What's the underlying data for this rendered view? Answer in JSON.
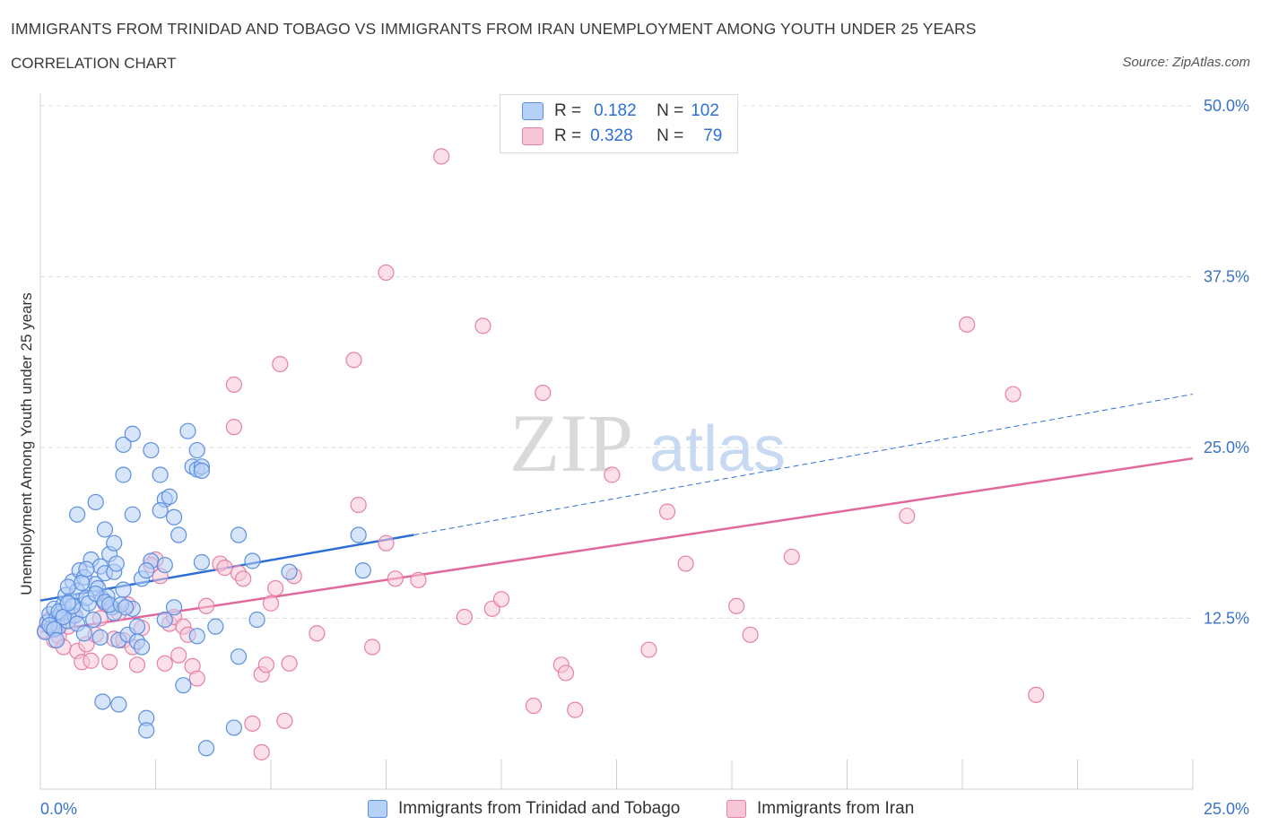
{
  "header": {
    "title": "IMMIGRANTS FROM TRINIDAD AND TOBAGO VS IMMIGRANTS FROM IRAN UNEMPLOYMENT AMONG YOUTH UNDER 25 YEARS",
    "subtitle": "CORRELATION CHART",
    "source": "Source: ZipAtlas.com"
  },
  "legend": {
    "r_label": "R =",
    "n_label": "N =",
    "series1_r": "0.182",
    "series1_n": "102",
    "series2_r": "0.328",
    "series2_n": "79"
  },
  "watermark": {
    "zip": "ZIP",
    "atlas": "atlas"
  },
  "colors": {
    "blue": "#5b8fe0",
    "blue_fill": "#b7d0f5",
    "blue_line": "#2d6fd6",
    "pink": "#e87fa6",
    "pink_fill": "#f7c6d7",
    "pink_line": "#e2679a",
    "axis_text": "#3a72c9"
  },
  "chart_data": {
    "type": "scatter",
    "title": "IMMIGRANTS FROM TRINIDAD AND TOBAGO VS IMMIGRANTS FROM IRAN UNEMPLOYMENT AMONG YOUTH UNDER 25 YEARS",
    "subtitle": "CORRELATION CHART",
    "xlabel": "",
    "ylabel": "Unemployment Among Youth under 25 years",
    "xlim": [
      0,
      25
    ],
    "ylim": [
      0,
      50
    ],
    "x_tick_labels": [
      "0.0%",
      "25.0%"
    ],
    "y_ticks": [
      12.5,
      25,
      37.5,
      50
    ],
    "y_tick_labels": [
      "12.5%",
      "25.0%",
      "37.5%",
      "50.0%"
    ],
    "grid": true,
    "legend_position": "top-center",
    "series": [
      {
        "name": "Immigrants from Trinidad and Tobago",
        "color": "#5b8fe0",
        "R": 0.182,
        "N": 102,
        "trend": {
          "x": [
            0,
            8.1
          ],
          "y": [
            13.8,
            18.6
          ],
          "dashed_to": [
            25,
            28.9
          ]
        },
        "points": [
          [
            0.1,
            11.5
          ],
          [
            0.15,
            12.2
          ],
          [
            0.2,
            12.8
          ],
          [
            0.25,
            11.8
          ],
          [
            0.3,
            13.2
          ],
          [
            0.35,
            12.5
          ],
          [
            0.4,
            11.9
          ],
          [
            0.45,
            12.9
          ],
          [
            0.5,
            13.5
          ],
          [
            0.55,
            14.2
          ],
          [
            0.6,
            12.3
          ],
          [
            0.65,
            13.8
          ],
          [
            0.7,
            15.2
          ],
          [
            0.75,
            12.7
          ],
          [
            0.8,
            14.5
          ],
          [
            0.85,
            16.0
          ],
          [
            0.9,
            13.1
          ],
          [
            0.95,
            15.5
          ],
          [
            1.0,
            14.0
          ],
          [
            1.05,
            13.6
          ],
          [
            1.1,
            16.8
          ],
          [
            1.15,
            12.4
          ],
          [
            1.2,
            15.0
          ],
          [
            1.25,
            14.7
          ],
          [
            1.3,
            16.3
          ],
          [
            1.35,
            13.9
          ],
          [
            1.4,
            15.8
          ],
          [
            1.45,
            14.1
          ],
          [
            1.5,
            17.2
          ],
          [
            1.55,
            13.3
          ],
          [
            1.6,
            15.9
          ],
          [
            1.65,
            16.5
          ],
          [
            0.2,
            12.0
          ],
          [
            0.3,
            11.7
          ],
          [
            0.4,
            13.0
          ],
          [
            0.5,
            12.6
          ],
          [
            0.6,
            14.8
          ],
          [
            0.7,
            13.4
          ],
          [
            0.8,
            12.1
          ],
          [
            0.9,
            15.1
          ],
          [
            1.0,
            16.1
          ],
          [
            1.2,
            14.3
          ],
          [
            1.4,
            13.7
          ],
          [
            1.6,
            12.9
          ],
          [
            1.8,
            14.6
          ],
          [
            2.0,
            13.2
          ],
          [
            2.2,
            15.4
          ],
          [
            2.4,
            16.7
          ],
          [
            0.8,
            20.1
          ],
          [
            1.2,
            21.0
          ],
          [
            1.4,
            19.0
          ],
          [
            1.6,
            18.0
          ],
          [
            1.8,
            25.2
          ],
          [
            1.8,
            23.0
          ],
          [
            2.0,
            26.0
          ],
          [
            2.0,
            20.1
          ],
          [
            2.4,
            24.8
          ],
          [
            2.6,
            23.0
          ],
          [
            2.7,
            21.2
          ],
          [
            2.8,
            21.4
          ],
          [
            2.9,
            19.9
          ],
          [
            3.0,
            18.6
          ],
          [
            3.2,
            26.2
          ],
          [
            3.3,
            23.6
          ],
          [
            3.4,
            24.8
          ],
          [
            3.4,
            23.4
          ],
          [
            3.5,
            23.6
          ],
          [
            3.5,
            23.3
          ],
          [
            2.6,
            20.4
          ],
          [
            4.3,
            18.6
          ],
          [
            4.6,
            16.7
          ],
          [
            5.4,
            15.9
          ],
          [
            6.9,
            18.6
          ],
          [
            7.0,
            16.0
          ],
          [
            2.7,
            12.4
          ],
          [
            2.9,
            13.3
          ],
          [
            3.5,
            16.6
          ],
          [
            3.8,
            11.9
          ],
          [
            4.7,
            12.4
          ],
          [
            4.3,
            9.7
          ],
          [
            1.3,
            11.1
          ],
          [
            1.5,
            13.5
          ],
          [
            1.7,
            10.9
          ],
          [
            1.9,
            11.3
          ],
          [
            2.1,
            11.9
          ],
          [
            2.3,
            16.0
          ],
          [
            3.1,
            7.6
          ],
          [
            3.4,
            11.2
          ],
          [
            1.35,
            6.4
          ],
          [
            1.7,
            6.2
          ],
          [
            2.3,
            5.2
          ],
          [
            2.3,
            4.3
          ],
          [
            3.6,
            3.0
          ],
          [
            4.2,
            4.5
          ],
          [
            2.1,
            10.8
          ],
          [
            2.2,
            10.4
          ],
          [
            0.95,
            11.4
          ],
          [
            1.75,
            13.5
          ],
          [
            2.7,
            16.4
          ],
          [
            0.35,
            10.9
          ],
          [
            0.6,
            13.6
          ],
          [
            1.85,
            13.3
          ]
        ]
      },
      {
        "name": "Immigrants from Iran",
        "color": "#e87fa6",
        "R": 0.328,
        "N": 79,
        "trend": {
          "x": [
            0,
            25
          ],
          "y": [
            11.5,
            24.2
          ]
        },
        "points": [
          [
            0.1,
            11.6
          ],
          [
            0.2,
            12.4
          ],
          [
            0.3,
            10.9
          ],
          [
            0.4,
            11.2
          ],
          [
            0.5,
            10.4
          ],
          [
            0.6,
            11.9
          ],
          [
            0.7,
            12.7
          ],
          [
            0.8,
            10.1
          ],
          [
            0.9,
            9.3
          ],
          [
            1.0,
            10.6
          ],
          [
            1.1,
            9.4
          ],
          [
            1.2,
            11.3
          ],
          [
            1.3,
            12.5
          ],
          [
            1.4,
            13.6
          ],
          [
            1.5,
            9.3
          ],
          [
            1.6,
            11.0
          ],
          [
            1.7,
            12.9
          ],
          [
            1.8,
            10.9
          ],
          [
            1.9,
            13.5
          ],
          [
            2.0,
            10.4
          ],
          [
            2.1,
            9.1
          ],
          [
            2.2,
            11.8
          ],
          [
            2.5,
            16.8
          ],
          [
            2.6,
            15.6
          ],
          [
            2.7,
            9.2
          ],
          [
            2.8,
            12.1
          ],
          [
            2.9,
            12.6
          ],
          [
            3.0,
            9.8
          ],
          [
            3.1,
            11.9
          ],
          [
            3.2,
            11.3
          ],
          [
            3.3,
            9.0
          ],
          [
            3.4,
            8.1
          ],
          [
            3.6,
            13.4
          ],
          [
            3.9,
            16.5
          ],
          [
            4.0,
            16.2
          ],
          [
            4.2,
            29.6
          ],
          [
            4.2,
            26.5
          ],
          [
            4.3,
            15.8
          ],
          [
            4.4,
            15.4
          ],
          [
            4.6,
            4.8
          ],
          [
            4.8,
            8.4
          ],
          [
            4.9,
            9.1
          ],
          [
            5.0,
            13.6
          ],
          [
            5.1,
            14.7
          ],
          [
            5.2,
            31.1
          ],
          [
            5.3,
            5.0
          ],
          [
            5.4,
            9.2
          ],
          [
            5.5,
            15.6
          ],
          [
            6.0,
            11.4
          ],
          [
            6.8,
            31.4
          ],
          [
            6.9,
            20.8
          ],
          [
            7.2,
            10.4
          ],
          [
            7.5,
            37.8
          ],
          [
            7.5,
            18.0
          ],
          [
            7.7,
            15.4
          ],
          [
            8.2,
            15.3
          ],
          [
            8.7,
            46.3
          ],
          [
            9.2,
            12.6
          ],
          [
            9.6,
            33.9
          ],
          [
            9.8,
            13.2
          ],
          [
            10.0,
            13.9
          ],
          [
            10.7,
            6.1
          ],
          [
            10.9,
            29.0
          ],
          [
            11.3,
            9.1
          ],
          [
            11.4,
            8.5
          ],
          [
            11.6,
            5.8
          ],
          [
            12.4,
            23.0
          ],
          [
            13.2,
            10.2
          ],
          [
            13.6,
            20.3
          ],
          [
            14.0,
            16.5
          ],
          [
            15.1,
            13.4
          ],
          [
            15.4,
            11.3
          ],
          [
            16.3,
            17.0
          ],
          [
            18.8,
            20.0
          ],
          [
            20.1,
            34.0
          ],
          [
            21.1,
            28.9
          ],
          [
            21.6,
            6.9
          ],
          [
            4.8,
            2.7
          ],
          [
            2.4,
            16.4
          ]
        ]
      }
    ]
  }
}
